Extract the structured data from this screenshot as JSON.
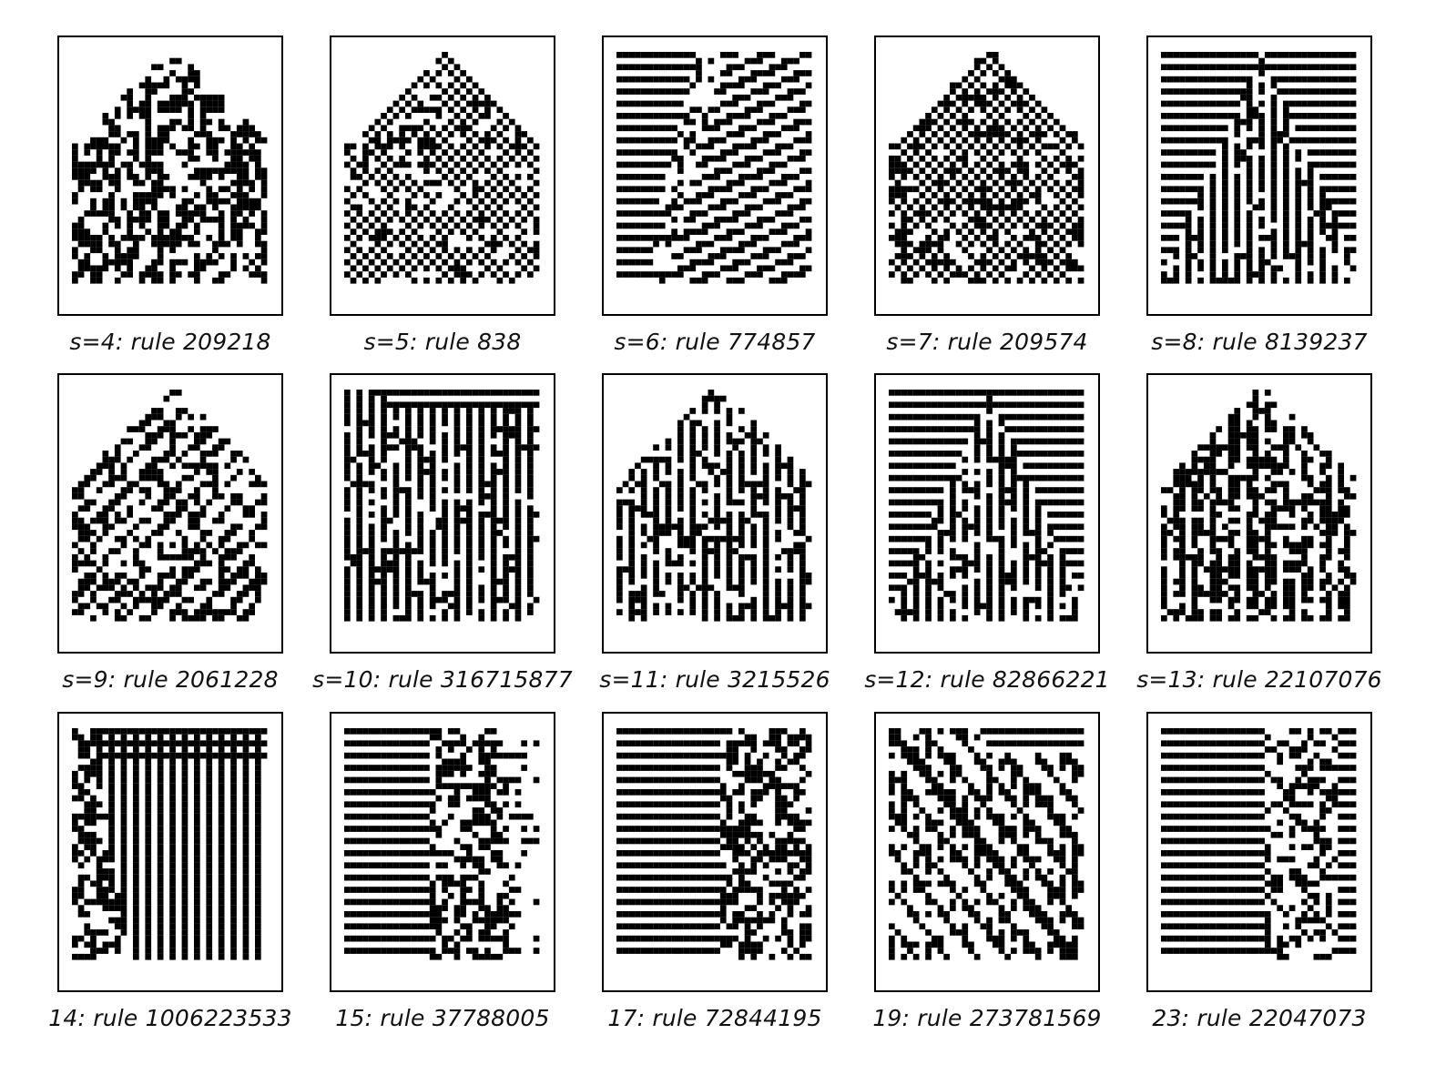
{
  "figure": {
    "panels": [
      {
        "label": "s=4: rule 209218",
        "pattern": "pentagon-scatter"
      },
      {
        "label": "s=5: rule 838",
        "pattern": "pentagon-checker"
      },
      {
        "label": "s=6: rule 774857",
        "pattern": "stripes-diagonal"
      },
      {
        "label": "s=7: rule 209574",
        "pattern": "pentagon-checker-dense"
      },
      {
        "label": "s=8: rule 8139237",
        "pattern": "stripes-triangle-vertical"
      },
      {
        "label": "s=9: rule 2061228",
        "pattern": "pentagon-diagonal"
      },
      {
        "label": "s=10: rule 316715877",
        "pattern": "vertical-columns"
      },
      {
        "label": "s=11: rule 3215526",
        "pattern": "pentagon-vertical"
      },
      {
        "label": "s=12: rule 82866221",
        "pattern": "stripes-triangle-vertical"
      },
      {
        "label": "s=13: rule 22107076",
        "pattern": "pentagon-vertical-dense"
      },
      {
        "label": "14: rule 1006223533",
        "pattern": "stripes-vertical-left"
      },
      {
        "label": "15: rule 37788005",
        "pattern": "stripes-middle-random"
      },
      {
        "label": "17: rule 72844195",
        "pattern": "stripes-right-random"
      },
      {
        "label": "19: rule 273781569",
        "pattern": "stripes-diagonal-bands"
      },
      {
        "label": "23: rule 22047073",
        "pattern": "stripes-right-sparse"
      }
    ]
  }
}
